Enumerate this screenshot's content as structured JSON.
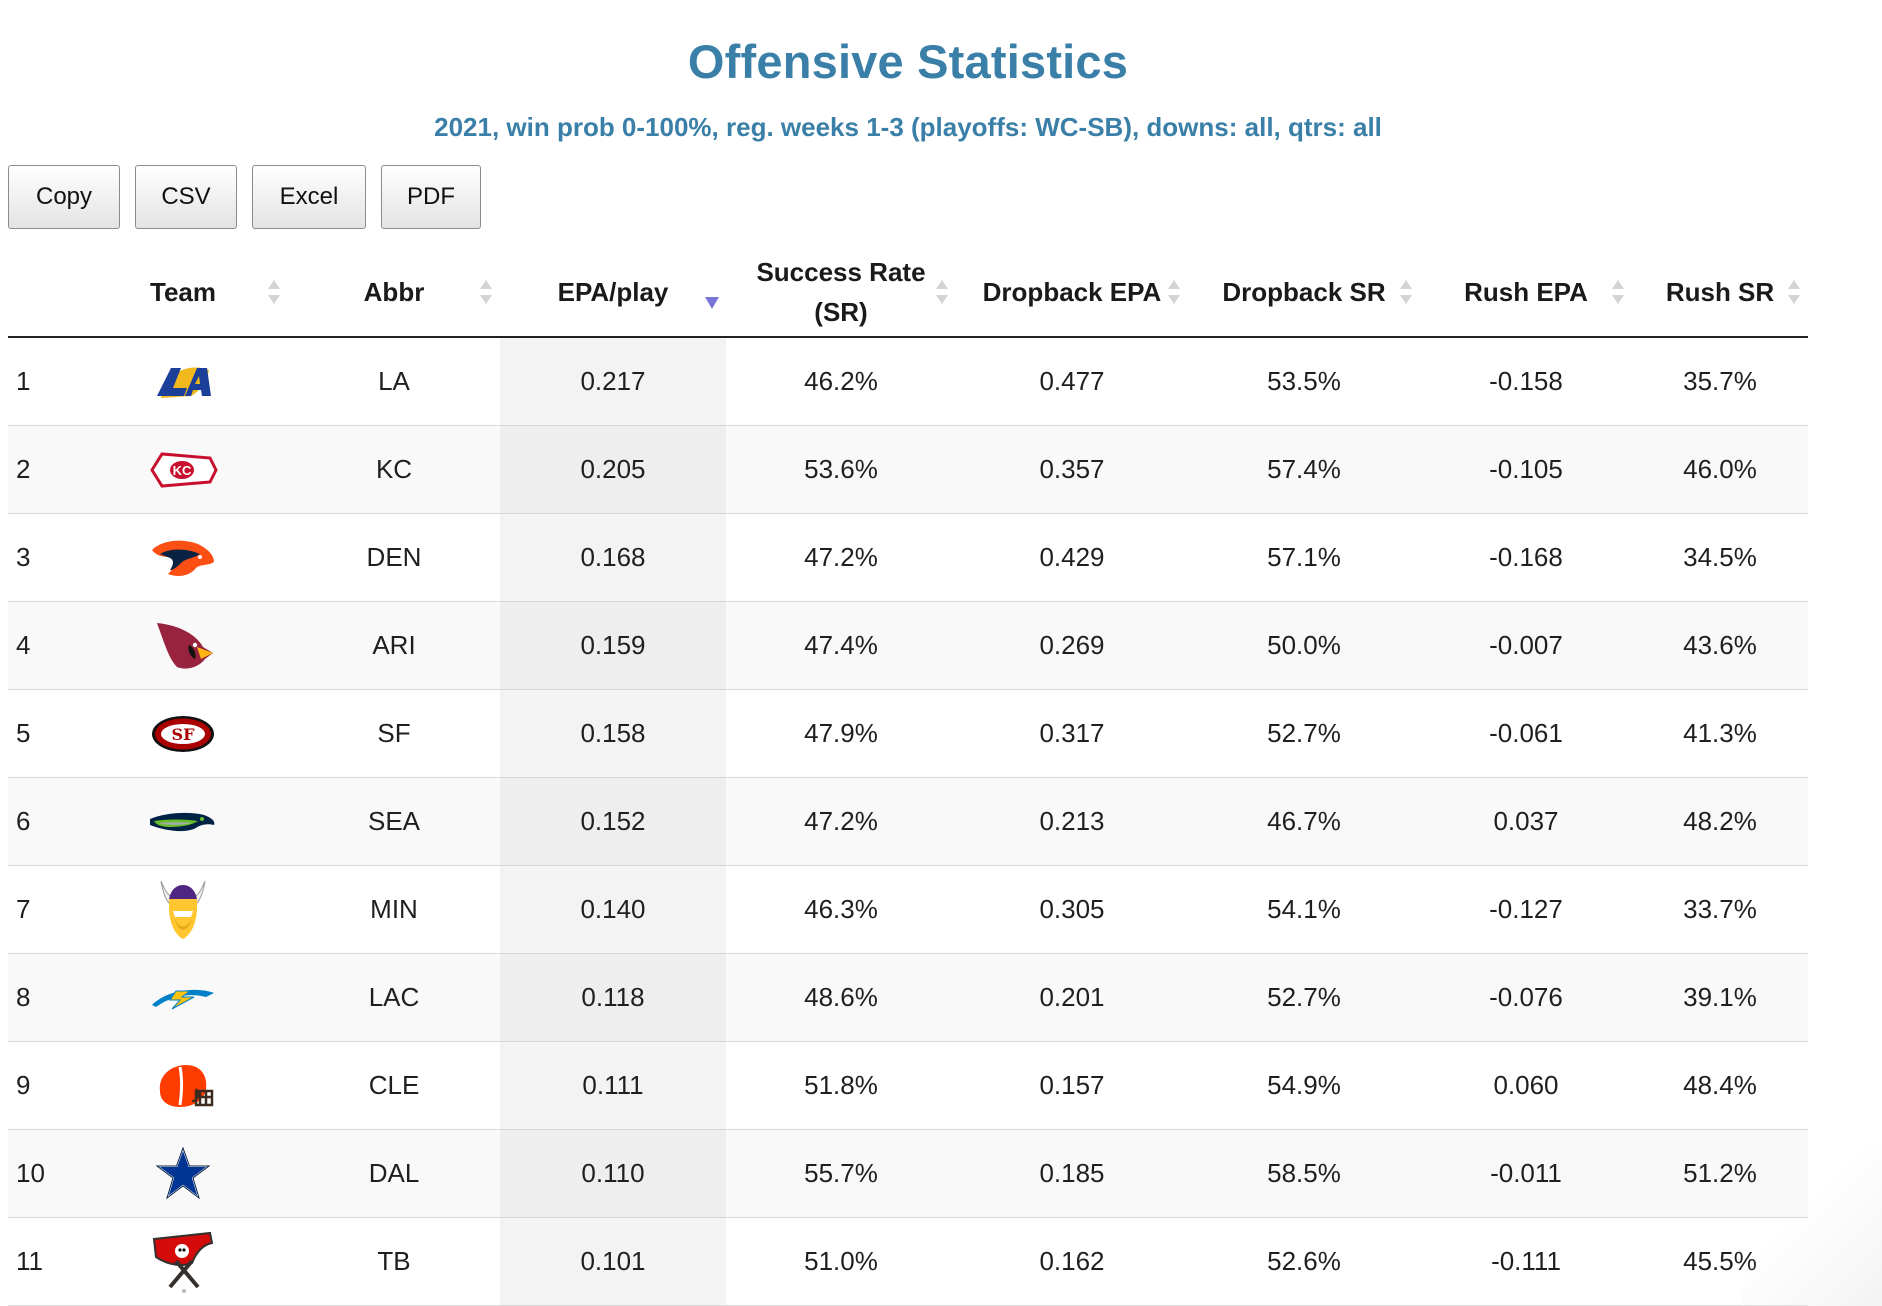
{
  "title": "Offensive Statistics",
  "subtitle": "2021, win prob 0-100%, reg. weeks 1-3 (playoffs: WC-SB), downs: all, qtrs: all",
  "buttons": [
    "Copy",
    "CSV",
    "Excel",
    "PDF"
  ],
  "columns": [
    "",
    "Team",
    "Abbr",
    "EPA/play",
    "Success Rate (SR)",
    "Dropback EPA",
    "Dropback SR",
    "Rush EPA",
    "Rush SR"
  ],
  "sort": {
    "column": "EPA/play",
    "direction": "descending"
  },
  "rows": [
    {
      "rank": "1",
      "logo": "rams-logo",
      "abbr": "LA",
      "epa": "0.217",
      "sr": "46.2%",
      "db_epa": "0.477",
      "db_sr": "53.5%",
      "rush_epa": "-0.158",
      "rush_sr": "35.7%"
    },
    {
      "rank": "2",
      "logo": "chiefs-logo",
      "abbr": "KC",
      "epa": "0.205",
      "sr": "53.6%",
      "db_epa": "0.357",
      "db_sr": "57.4%",
      "rush_epa": "-0.105",
      "rush_sr": "46.0%"
    },
    {
      "rank": "3",
      "logo": "broncos-logo",
      "abbr": "DEN",
      "epa": "0.168",
      "sr": "47.2%",
      "db_epa": "0.429",
      "db_sr": "57.1%",
      "rush_epa": "-0.168",
      "rush_sr": "34.5%"
    },
    {
      "rank": "4",
      "logo": "cardinals-logo",
      "abbr": "ARI",
      "epa": "0.159",
      "sr": "47.4%",
      "db_epa": "0.269",
      "db_sr": "50.0%",
      "rush_epa": "-0.007",
      "rush_sr": "43.6%"
    },
    {
      "rank": "5",
      "logo": "49ers-logo",
      "abbr": "SF",
      "epa": "0.158",
      "sr": "47.9%",
      "db_epa": "0.317",
      "db_sr": "52.7%",
      "rush_epa": "-0.061",
      "rush_sr": "41.3%"
    },
    {
      "rank": "6",
      "logo": "seahawks-logo",
      "abbr": "SEA",
      "epa": "0.152",
      "sr": "47.2%",
      "db_epa": "0.213",
      "db_sr": "46.7%",
      "rush_epa": "0.037",
      "rush_sr": "48.2%"
    },
    {
      "rank": "7",
      "logo": "vikings-logo",
      "abbr": "MIN",
      "epa": "0.140",
      "sr": "46.3%",
      "db_epa": "0.305",
      "db_sr": "54.1%",
      "rush_epa": "-0.127",
      "rush_sr": "33.7%"
    },
    {
      "rank": "8",
      "logo": "chargers-logo",
      "abbr": "LAC",
      "epa": "0.118",
      "sr": "48.6%",
      "db_epa": "0.201",
      "db_sr": "52.7%",
      "rush_epa": "-0.076",
      "rush_sr": "39.1%"
    },
    {
      "rank": "9",
      "logo": "browns-logo",
      "abbr": "CLE",
      "epa": "0.111",
      "sr": "51.8%",
      "db_epa": "0.157",
      "db_sr": "54.9%",
      "rush_epa": "0.060",
      "rush_sr": "48.4%"
    },
    {
      "rank": "10",
      "logo": "cowboys-logo",
      "abbr": "DAL",
      "epa": "0.110",
      "sr": "55.7%",
      "db_epa": "0.185",
      "db_sr": "58.5%",
      "rush_epa": "-0.011",
      "rush_sr": "51.2%"
    },
    {
      "rank": "11",
      "logo": "buccaneers-logo",
      "abbr": "TB",
      "epa": "0.101",
      "sr": "51.0%",
      "db_epa": "0.162",
      "db_sr": "52.6%",
      "rush_epa": "-0.111",
      "rush_sr": "45.5%"
    }
  ]
}
